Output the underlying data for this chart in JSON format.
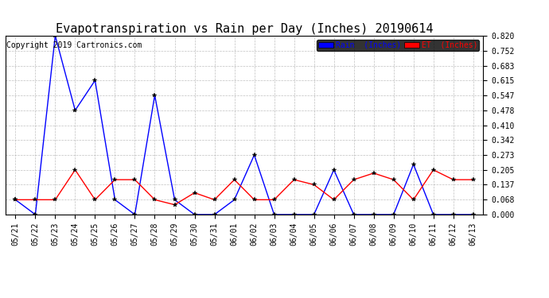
{
  "title": "Evapotranspiration vs Rain per Day (Inches) 20190614",
  "copyright": "Copyright 2019 Cartronics.com",
  "x_labels": [
    "05/21",
    "05/22",
    "05/23",
    "05/24",
    "05/25",
    "05/26",
    "05/27",
    "05/28",
    "05/29",
    "05/30",
    "05/31",
    "06/01",
    "06/02",
    "06/03",
    "06/04",
    "06/05",
    "06/06",
    "06/07",
    "06/08",
    "06/09",
    "06/10",
    "06/11",
    "06/12",
    "06/13"
  ],
  "rain_inches": [
    0.068,
    0.0,
    0.82,
    0.478,
    0.615,
    0.068,
    0.0,
    0.547,
    0.068,
    0.0,
    0.0,
    0.068,
    0.273,
    0.0,
    0.0,
    0.0,
    0.205,
    0.0,
    0.0,
    0.0,
    0.23,
    0.0,
    0.0,
    0.0
  ],
  "et_inches": [
    0.068,
    0.068,
    0.068,
    0.205,
    0.068,
    0.16,
    0.16,
    0.068,
    0.045,
    0.1,
    0.068,
    0.16,
    0.068,
    0.068,
    0.16,
    0.137,
    0.068,
    0.16,
    0.19,
    0.16,
    0.068,
    0.205,
    0.16,
    0.16
  ],
  "rain_color": "#0000ff",
  "et_color": "#ff0000",
  "background_color": "#ffffff",
  "grid_color": "#b0b0b0",
  "ylim_min": 0.0,
  "ylim_max": 0.82,
  "yticks": [
    0.0,
    0.068,
    0.137,
    0.205,
    0.273,
    0.342,
    0.41,
    0.478,
    0.547,
    0.615,
    0.683,
    0.752,
    0.82
  ],
  "legend_rain_label": "Rain  (Inches)",
  "legend_et_label": "ET  (Inches)",
  "title_fontsize": 11,
  "copyright_fontsize": 7,
  "tick_fontsize": 7,
  "legend_fontsize": 7,
  "legend_rain_bg": "#0000ff",
  "legend_et_bg": "#ff0000",
  "legend_text_color": "#ffffff"
}
